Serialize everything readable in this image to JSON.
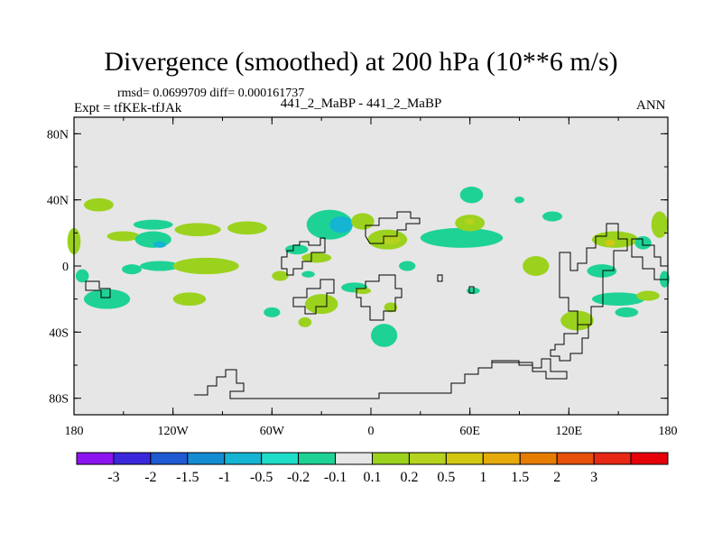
{
  "title": "Divergence (smoothed) at 200 hPa (10**6 m/s)",
  "stats": "rmsd= 0.0699709 diff= 0.000161737",
  "expt": "Expt = tfKEk-tfJAk",
  "cases": "441_2_MaBP - 441_2_MaBP",
  "season": "ANN",
  "map": {
    "lon_range": [
      -180,
      180
    ],
    "lat_range": [
      -90,
      90
    ],
    "background_color": "#e6e6e6",
    "lat_ticks": [
      "80N",
      "40N",
      "0",
      "40S",
      "80S"
    ],
    "lon_ticks": [
      "180",
      "120W",
      "60W",
      "0",
      "60E",
      "120E",
      "180"
    ]
  },
  "colorbar": {
    "colors": [
      "#8c14f0",
      "#3c28dc",
      "#1e5ad2",
      "#148cd2",
      "#14b4d2",
      "#1edcc8",
      "#1ed296",
      "#e6e6e6",
      "#9bd21e",
      "#b4d21e",
      "#d2c814",
      "#e6aa0a",
      "#e67d00",
      "#e6500a",
      "#e62814",
      "#e6000a"
    ],
    "labels": [
      "-3",
      "-2",
      "-1.5",
      "-1",
      "-0.5",
      "-0.2",
      "-0.1",
      "0.1",
      "0.2",
      "0.5",
      "1",
      "1.5",
      "2",
      "3"
    ]
  },
  "blobs": [
    {
      "lon": -165,
      "lat": 37,
      "rx": 9,
      "ry": 4,
      "c": "#9bd21e"
    },
    {
      "lon": -132,
      "lat": 25,
      "rx": 12,
      "ry": 3,
      "c": "#1ed296"
    },
    {
      "lon": -105,
      "lat": 22,
      "rx": 14,
      "ry": 4,
      "c": "#9bd21e"
    },
    {
      "lon": -75,
      "lat": 23,
      "rx": 12,
      "ry": 4,
      "c": "#9bd21e"
    },
    {
      "lon": -150,
      "lat": 18,
      "rx": 10,
      "ry": 3,
      "c": "#9bd21e"
    },
    {
      "lon": -132,
      "lat": 16,
      "rx": 11,
      "ry": 5,
      "c": "#1ed296"
    },
    {
      "lon": -128,
      "lat": 13,
      "rx": 4,
      "ry": 2,
      "c": "#14b4d2"
    },
    {
      "lon": -128,
      "lat": 0,
      "rx": 12,
      "ry": 3,
      "c": "#1ed296"
    },
    {
      "lon": -100,
      "lat": 0,
      "rx": 20,
      "ry": 5,
      "c": "#9bd21e"
    },
    {
      "lon": -145,
      "lat": -2,
      "rx": 6,
      "ry": 3,
      "c": "#1ed296"
    },
    {
      "lon": -160,
      "lat": -20,
      "rx": 14,
      "ry": 6,
      "c": "#1ed296"
    },
    {
      "lon": -110,
      "lat": -20,
      "rx": 10,
      "ry": 4,
      "c": "#9bd21e"
    },
    {
      "lon": -180,
      "lat": 15,
      "rx": 4,
      "ry": 8,
      "c": "#9bd21e"
    },
    {
      "lon": -175,
      "lat": -6,
      "rx": 4,
      "ry": 4,
      "c": "#1ed296"
    },
    {
      "lon": -25,
      "lat": 25,
      "rx": 14,
      "ry": 9,
      "c": "#1ed296"
    },
    {
      "lon": -18,
      "lat": 25,
      "rx": 7,
      "ry": 5,
      "c": "#14b4d2"
    },
    {
      "lon": -5,
      "lat": 27,
      "rx": 7,
      "ry": 5,
      "c": "#9bd21e"
    },
    {
      "lon": -45,
      "lat": 10,
      "rx": 7,
      "ry": 3,
      "c": "#1ed296"
    },
    {
      "lon": -33,
      "lat": 5,
      "rx": 9,
      "ry": 3,
      "c": "#9bd21e"
    },
    {
      "lon": -55,
      "lat": -6,
      "rx": 5,
      "ry": 3,
      "c": "#9bd21e"
    },
    {
      "lon": -38,
      "lat": -5,
      "rx": 4,
      "ry": 2,
      "c": "#1ed296"
    },
    {
      "lon": -10,
      "lat": -13,
      "rx": 8,
      "ry": 3,
      "c": "#1ed296"
    },
    {
      "lon": 10,
      "lat": 16,
      "rx": 12,
      "ry": 6,
      "c": "#9bd21e"
    },
    {
      "lon": 12,
      "lat": 16,
      "rx": 6,
      "ry": 3,
      "c": "#b4d21e"
    },
    {
      "lon": -30,
      "lat": -23,
      "rx": 10,
      "ry": 6,
      "c": "#9bd21e"
    },
    {
      "lon": -60,
      "lat": -28,
      "rx": 5,
      "ry": 3,
      "c": "#1ed296"
    },
    {
      "lon": -40,
      "lat": -34,
      "rx": 4,
      "ry": 3,
      "c": "#9bd21e"
    },
    {
      "lon": 8,
      "lat": -42,
      "rx": 8,
      "ry": 7,
      "c": "#1ed296"
    },
    {
      "lon": -5,
      "lat": -15,
      "rx": 5,
      "ry": 2,
      "c": "#9bd21e"
    },
    {
      "lon": 12,
      "lat": -25,
      "rx": 4,
      "ry": 3,
      "c": "#9bd21e"
    },
    {
      "lon": 22,
      "lat": 0,
      "rx": 5,
      "ry": 3,
      "c": "#1ed296"
    },
    {
      "lon": 55,
      "lat": 17,
      "rx": 25,
      "ry": 6,
      "c": "#1ed296"
    },
    {
      "lon": 60,
      "lat": 26,
      "rx": 9,
      "ry": 5,
      "c": "#9bd21e"
    },
    {
      "lon": 60,
      "lat": 27,
      "rx": 3,
      "ry": 2,
      "c": "#b4d21e"
    },
    {
      "lon": 61,
      "lat": 43,
      "rx": 7,
      "ry": 5,
      "c": "#1ed296"
    },
    {
      "lon": 90,
      "lat": 40,
      "rx": 3,
      "ry": 2,
      "c": "#1ed296"
    },
    {
      "lon": 110,
      "lat": 30,
      "rx": 6,
      "ry": 3,
      "c": "#1ed296"
    },
    {
      "lon": 148,
      "lat": 16,
      "rx": 14,
      "ry": 5,
      "c": "#9bd21e"
    },
    {
      "lon": 145,
      "lat": 14,
      "rx": 3,
      "ry": 2,
      "c": "#d2c814"
    },
    {
      "lon": 165,
      "lat": 14,
      "rx": 5,
      "ry": 4,
      "c": "#1ed296"
    },
    {
      "lon": 175,
      "lat": 25,
      "rx": 5,
      "ry": 8,
      "c": "#9bd21e"
    },
    {
      "lon": 100,
      "lat": 0,
      "rx": 8,
      "ry": 6,
      "c": "#9bd21e"
    },
    {
      "lon": 140,
      "lat": -3,
      "rx": 9,
      "ry": 4,
      "c": "#1ed296"
    },
    {
      "lon": 150,
      "lat": -20,
      "rx": 16,
      "ry": 4,
      "c": "#1ed296"
    },
    {
      "lon": 168,
      "lat": -18,
      "rx": 7,
      "ry": 3,
      "c": "#9bd21e"
    },
    {
      "lon": 178,
      "lat": -8,
      "rx": 3,
      "ry": 5,
      "c": "#1ed296"
    },
    {
      "lon": 125,
      "lat": -33,
      "rx": 10,
      "ry": 6,
      "c": "#9bd21e"
    },
    {
      "lon": 155,
      "lat": -28,
      "rx": 7,
      "ry": 3,
      "c": "#1ed296"
    },
    {
      "lon": 62,
      "lat": -15,
      "rx": 4,
      "ry": 2,
      "c": "#1ed296"
    }
  ]
}
